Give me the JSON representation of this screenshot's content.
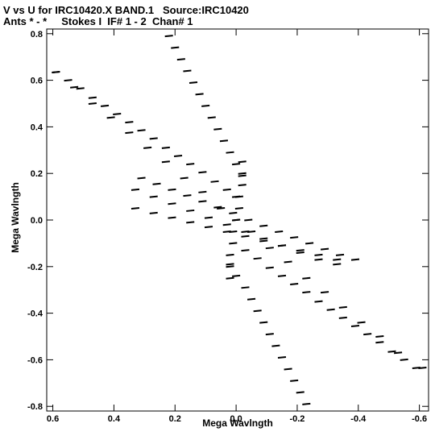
{
  "header": {
    "line1": "V vs U for IRC10420.X BAND.1   Source:IRC10420",
    "line2": "Ants * - *     Stokes I  IF# 1 - 2  Chan# 1"
  },
  "chart_data": {
    "type": "scatter",
    "title": "V vs U for IRC10420.X BAND.1   Source:IRC10420",
    "subtitle": "Ants * - *     Stokes I  IF# 1 - 2  Chan# 1",
    "xlabel": "Mega Wavlngth",
    "ylabel": "Mega Wavlngth",
    "xlim": [
      0.62,
      -0.63
    ],
    "ylim": [
      -0.82,
      0.82
    ],
    "x_reversed": true,
    "grid": false,
    "legend": "none",
    "xticks": [
      {
        "value": 0.6,
        "label": "0.6"
      },
      {
        "value": 0.4,
        "label": "0.4"
      },
      {
        "value": 0.2,
        "label": "0.2"
      },
      {
        "value": 0.0,
        "label": "0.0"
      },
      {
        "value": -0.2,
        "label": "-0.2"
      },
      {
        "value": -0.4,
        "label": "-0.4"
      },
      {
        "value": -0.6,
        "label": "-0.6"
      }
    ],
    "yticks": [
      {
        "value": 0.8,
        "label": "0.8"
      },
      {
        "value": 0.6,
        "label": "0.6"
      },
      {
        "value": 0.4,
        "label": "0.4"
      },
      {
        "value": 0.2,
        "label": "0.2"
      },
      {
        "value": 0.0,
        "label": "0.0"
      },
      {
        "value": -0.2,
        "label": "-0.2"
      },
      {
        "value": -0.4,
        "label": "-0.4"
      },
      {
        "value": -0.6,
        "label": "-0.6"
      },
      {
        "value": -0.8,
        "label": "-0.8"
      }
    ],
    "series": [
      {
        "points": [
          [
            0.59,
            0.635
          ],
          [
            0.55,
            0.6
          ],
          [
            0.51,
            0.565
          ],
          [
            0.47,
            0.525
          ],
          [
            0.43,
            0.49
          ],
          [
            0.39,
            0.455
          ],
          [
            0.35,
            0.42
          ],
          [
            0.31,
            0.385
          ],
          [
            0.27,
            0.35
          ],
          [
            0.23,
            0.31
          ],
          [
            0.19,
            0.275
          ],
          [
            0.15,
            0.24
          ],
          [
            0.11,
            0.205
          ],
          [
            0.07,
            0.165
          ],
          [
            0.03,
            0.13
          ],
          [
            0.0,
            0.1
          ],
          [
            0.59,
            0.635
          ],
          [
            0.53,
            0.57
          ],
          [
            0.47,
            0.5
          ],
          [
            0.41,
            0.44
          ],
          [
            0.35,
            0.375
          ],
          [
            0.29,
            0.31
          ],
          [
            0.23,
            0.25
          ],
          [
            0.17,
            0.18
          ],
          [
            0.11,
            0.12
          ],
          [
            0.05,
            0.05
          ],
          [
            0.0,
            0.0
          ],
          [
            -0.59,
            -0.635
          ],
          [
            -0.55,
            -0.6
          ],
          [
            -0.51,
            -0.565
          ],
          [
            -0.47,
            -0.525
          ],
          [
            -0.43,
            -0.49
          ],
          [
            -0.39,
            -0.455
          ],
          [
            -0.35,
            -0.42
          ],
          [
            -0.31,
            -0.385
          ],
          [
            -0.27,
            -0.35
          ],
          [
            -0.23,
            -0.31
          ],
          [
            -0.19,
            -0.275
          ],
          [
            -0.15,
            -0.24
          ],
          [
            -0.11,
            -0.205
          ],
          [
            -0.07,
            -0.165
          ],
          [
            -0.03,
            -0.13
          ],
          [
            -0.61,
            -0.635
          ],
          [
            -0.53,
            -0.57
          ],
          [
            -0.47,
            -0.5
          ],
          [
            -0.41,
            -0.44
          ],
          [
            -0.35,
            -0.375
          ],
          [
            -0.29,
            -0.31
          ],
          [
            -0.23,
            -0.25
          ],
          [
            -0.17,
            -0.18
          ],
          [
            -0.11,
            -0.12
          ],
          [
            -0.05,
            -0.05
          ]
        ]
      },
      {
        "points": [
          [
            0.31,
            0.18
          ],
          [
            0.26,
            0.155
          ],
          [
            0.21,
            0.13
          ],
          [
            0.16,
            0.105
          ],
          [
            0.11,
            0.08
          ],
          [
            0.06,
            0.055
          ],
          [
            0.01,
            0.03
          ],
          [
            -0.04,
            0.0
          ],
          [
            -0.09,
            -0.025
          ],
          [
            -0.14,
            -0.05
          ],
          [
            -0.19,
            -0.075
          ],
          [
            -0.24,
            -0.1
          ],
          [
            -0.29,
            -0.125
          ],
          [
            -0.34,
            -0.15
          ],
          [
            -0.39,
            -0.17
          ],
          [
            0.33,
            0.13
          ],
          [
            0.27,
            0.1
          ],
          [
            0.21,
            0.07
          ],
          [
            0.15,
            0.04
          ],
          [
            0.09,
            0.01
          ],
          [
            0.03,
            -0.02
          ],
          [
            -0.03,
            -0.05
          ],
          [
            -0.09,
            -0.08
          ],
          [
            -0.15,
            -0.11
          ],
          [
            -0.21,
            -0.14
          ],
          [
            -0.27,
            -0.17
          ],
          [
            -0.33,
            -0.19
          ],
          [
            0.33,
            0.05
          ],
          [
            0.27,
            0.03
          ],
          [
            0.21,
            0.01
          ],
          [
            0.15,
            -0.01
          ],
          [
            0.09,
            -0.03
          ],
          [
            0.03,
            -0.05
          ],
          [
            -0.03,
            -0.07
          ],
          [
            -0.09,
            -0.09
          ],
          [
            -0.15,
            -0.11
          ],
          [
            -0.21,
            -0.13
          ],
          [
            -0.27,
            -0.15
          ],
          [
            -0.33,
            -0.17
          ]
        ]
      },
      {
        "points": [
          [
            0.22,
            0.79
          ],
          [
            0.2,
            0.74
          ],
          [
            0.18,
            0.69
          ],
          [
            0.16,
            0.64
          ],
          [
            0.14,
            0.59
          ],
          [
            0.12,
            0.54
          ],
          [
            0.1,
            0.49
          ],
          [
            0.08,
            0.44
          ],
          [
            0.06,
            0.39
          ],
          [
            0.04,
            0.34
          ],
          [
            0.02,
            0.29
          ],
          [
            0.0,
            0.24
          ],
          [
            -0.02,
            0.19
          ],
          [
            -0.23,
            -0.79
          ],
          [
            -0.21,
            -0.74
          ],
          [
            -0.19,
            -0.69
          ],
          [
            -0.17,
            -0.64
          ],
          [
            -0.15,
            -0.59
          ],
          [
            -0.13,
            -0.54
          ],
          [
            -0.11,
            -0.49
          ],
          [
            -0.09,
            -0.44
          ],
          [
            -0.07,
            -0.39
          ],
          [
            -0.05,
            -0.34
          ],
          [
            -0.03,
            -0.29
          ],
          [
            0.0,
            -0.24
          ],
          [
            0.02,
            -0.19
          ],
          [
            -0.02,
            0.25
          ],
          [
            -0.02,
            0.2
          ],
          [
            -0.02,
            0.15
          ],
          [
            -0.01,
            0.1
          ],
          [
            -0.01,
            0.05
          ],
          [
            0.0,
            0.0
          ],
          [
            0.01,
            -0.05
          ],
          [
            0.01,
            -0.1
          ],
          [
            0.02,
            -0.15
          ],
          [
            0.02,
            -0.2
          ],
          [
            0.02,
            -0.25
          ]
        ]
      }
    ]
  }
}
